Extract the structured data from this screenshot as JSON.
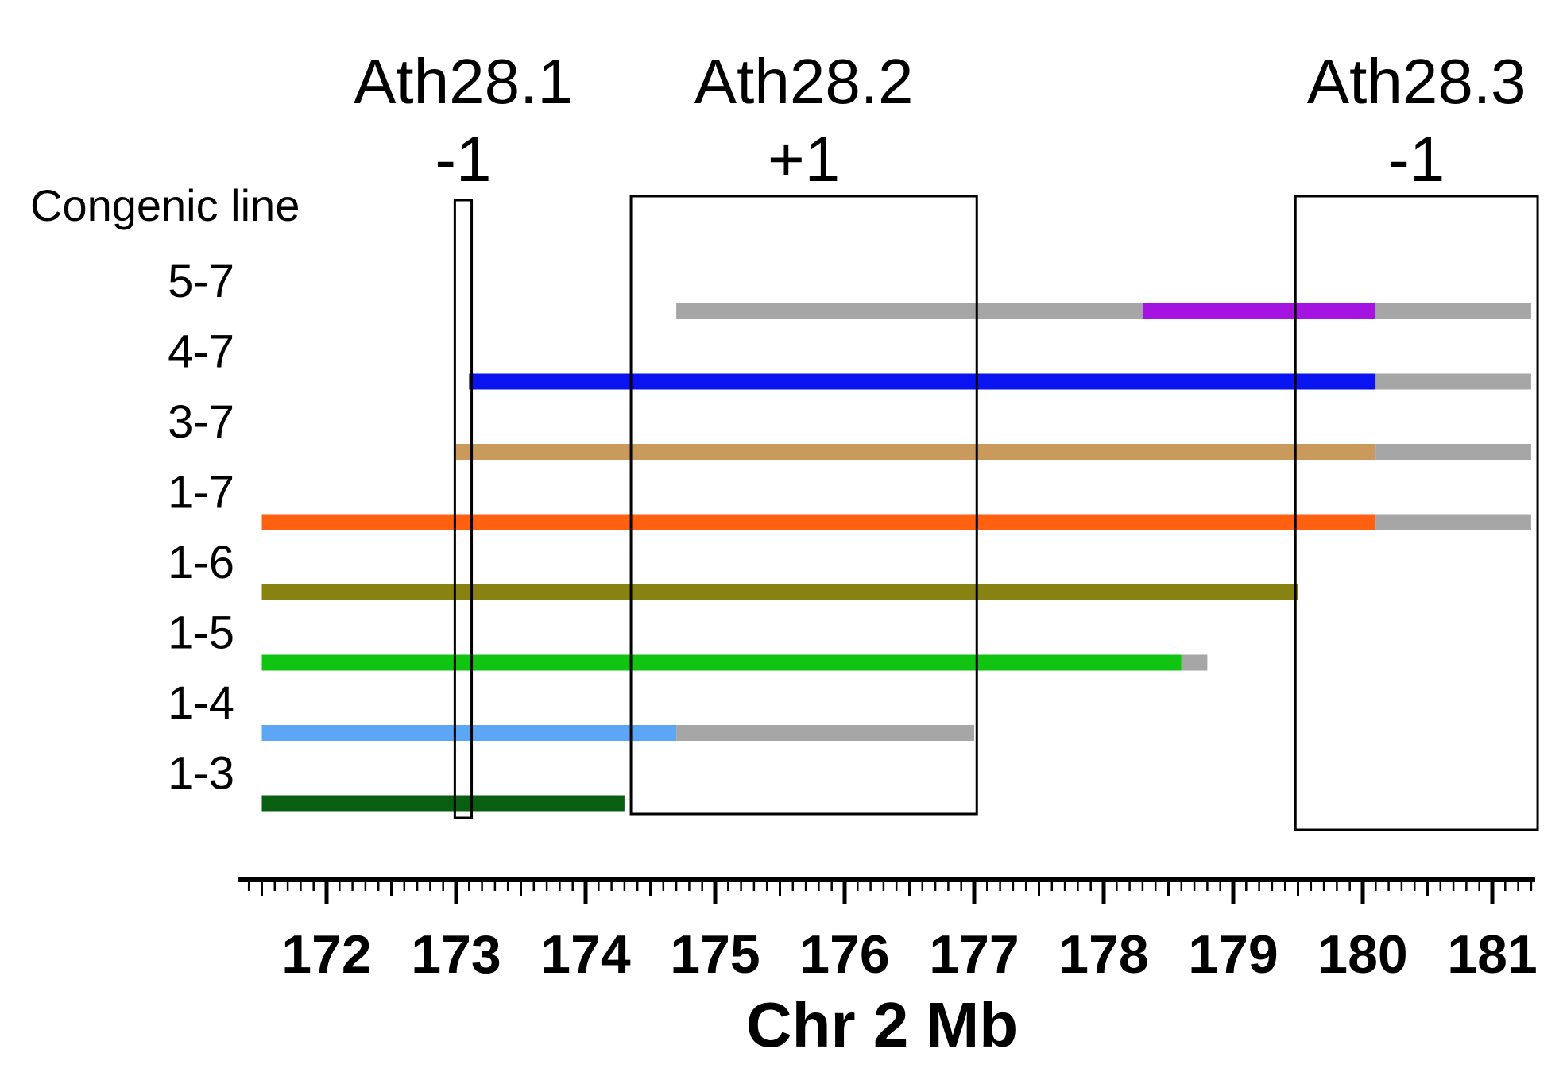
{
  "chart_data": {
    "type": "interval",
    "xlabel": "Chr 2 Mb",
    "xlim": [
      170.55,
      181.3
    ],
    "x_ticks": [
      172,
      173,
      174,
      175,
      176,
      177,
      178,
      179,
      180,
      181
    ],
    "row_header": "Congenic line",
    "qtl_regions": [
      {
        "name": "Ath28.1",
        "effect": "-1",
        "start": 172.99,
        "end": 173.12
      },
      {
        "name": "Ath28.2",
        "effect": "+1",
        "start": 174.35,
        "end": 177.02
      },
      {
        "name": "Ath28.3",
        "effect": "-1",
        "start": 179.48,
        "end": 181.35
      }
    ],
    "lines": [
      {
        "label": "5-7",
        "segments": [
          {
            "start": 174.7,
            "end": 178.3,
            "color": "#a6a6a6"
          },
          {
            "start": 178.3,
            "end": 180.1,
            "color": "#a513e0"
          },
          {
            "start": 180.1,
            "end": 181.3,
            "color": "#a6a6a6"
          }
        ]
      },
      {
        "label": "4-7",
        "segments": [
          {
            "start": 173.1,
            "end": 180.1,
            "color": "#0a14f0"
          },
          {
            "start": 180.1,
            "end": 181.3,
            "color": "#a6a6a6"
          }
        ]
      },
      {
        "label": "3-7",
        "segments": [
          {
            "start": 173.0,
            "end": 180.1,
            "color": "#c99a5b"
          },
          {
            "start": 180.1,
            "end": 181.3,
            "color": "#a6a6a6"
          }
        ]
      },
      {
        "label": "1-7",
        "segments": [
          {
            "start": 171.5,
            "end": 180.1,
            "color": "#ff6110"
          },
          {
            "start": 180.1,
            "end": 181.3,
            "color": "#a6a6a6"
          }
        ]
      },
      {
        "label": "1-6",
        "segments": [
          {
            "start": 171.5,
            "end": 179.5,
            "color": "#878212"
          }
        ]
      },
      {
        "label": "1-5",
        "segments": [
          {
            "start": 171.5,
            "end": 178.6,
            "color": "#11c411"
          },
          {
            "start": 178.6,
            "end": 178.8,
            "color": "#a6a6a6"
          }
        ]
      },
      {
        "label": "1-4",
        "segments": [
          {
            "start": 171.5,
            "end": 174.7,
            "color": "#5ca6f5"
          },
          {
            "start": 174.7,
            "end": 177.0,
            "color": "#a6a6a6"
          }
        ]
      },
      {
        "label": "1-3",
        "segments": [
          {
            "start": 171.5,
            "end": 174.3,
            "color": "#0a5e12"
          }
        ]
      }
    ]
  }
}
